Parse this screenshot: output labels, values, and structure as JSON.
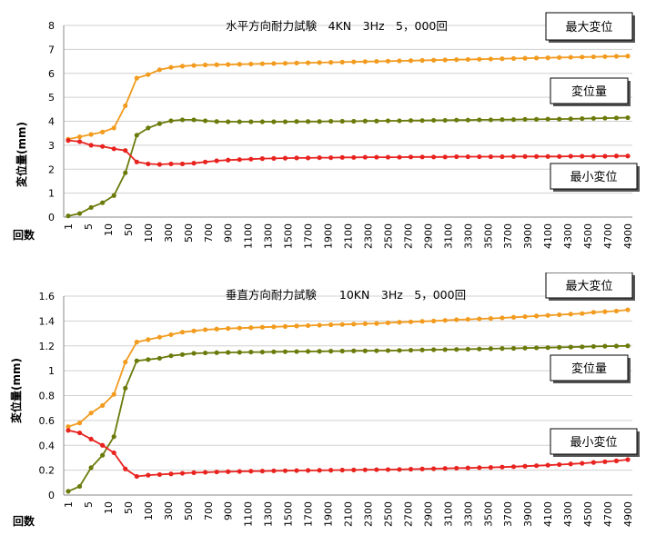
{
  "colors": {
    "max": "#f29b1e",
    "disp": "#6b7a0a",
    "min": "#e8231f",
    "grid": "#d0d0d0"
  },
  "x_labels": [
    "1",
    "5",
    "10",
    "50",
    "100",
    "300",
    "500",
    "700",
    "900",
    "1100",
    "1300",
    "1500",
    "1700",
    "1900",
    "2100",
    "2300",
    "2500",
    "2700",
    "2900",
    "3100",
    "3300",
    "3500",
    "3700",
    "3900",
    "4100",
    "4300",
    "4500",
    "4700",
    "4900"
  ],
  "chart_data": [
    {
      "type": "line",
      "title": "水平方向耐力試験　4KN　3Hz　5，000回",
      "xlabel": "回数",
      "ylabel": "変位量(mm)",
      "ylim": [
        0,
        8
      ],
      "yticks": [
        "0",
        "1",
        "2",
        "3",
        "4",
        "5",
        "6",
        "7",
        "8"
      ],
      "grid": true,
      "legend": [
        {
          "key": "max",
          "label": "最大変位"
        },
        {
          "key": "disp",
          "label": "変位量"
        },
        {
          "key": "min",
          "label": "最小変位"
        }
      ],
      "series": [
        {
          "key": "max",
          "values": [
            3.25,
            3.35,
            3.45,
            3.55,
            3.72,
            4.65,
            5.8,
            5.95,
            6.15,
            6.25,
            6.3,
            6.33,
            6.35,
            6.36,
            6.37,
            6.38,
            6.39,
            6.4,
            6.41,
            6.42,
            6.43,
            6.44,
            6.45,
            6.46,
            6.47,
            6.48,
            6.49,
            6.5,
            6.51,
            6.52,
            6.53,
            6.54,
            6.55,
            6.56,
            6.57,
            6.58,
            6.59,
            6.6,
            6.61,
            6.62,
            6.63,
            6.64,
            6.65,
            6.66,
            6.67,
            6.68,
            6.69,
            6.7,
            6.71,
            6.72
          ]
        },
        {
          "key": "disp",
          "values": [
            0.05,
            0.15,
            0.4,
            0.6,
            0.9,
            1.85,
            3.42,
            3.72,
            3.9,
            4.02,
            4.06,
            4.06,
            4.02,
            3.99,
            3.98,
            3.98,
            3.98,
            3.98,
            3.98,
            3.98,
            3.99,
            3.99,
            3.99,
            4.0,
            4.0,
            4.0,
            4.01,
            4.01,
            4.02,
            4.02,
            4.03,
            4.03,
            4.04,
            4.04,
            4.05,
            4.05,
            4.06,
            4.06,
            4.07,
            4.07,
            4.08,
            4.08,
            4.09,
            4.09,
            4.1,
            4.11,
            4.12,
            4.13,
            4.14,
            4.15
          ]
        },
        {
          "key": "min",
          "values": [
            3.2,
            3.15,
            3.0,
            2.95,
            2.85,
            2.78,
            2.3,
            2.22,
            2.2,
            2.22,
            2.22,
            2.25,
            2.3,
            2.35,
            2.38,
            2.4,
            2.42,
            2.44,
            2.45,
            2.46,
            2.47,
            2.47,
            2.48,
            2.48,
            2.49,
            2.49,
            2.5,
            2.5,
            2.5,
            2.5,
            2.51,
            2.51,
            2.51,
            2.51,
            2.52,
            2.52,
            2.52,
            2.52,
            2.52,
            2.53,
            2.53,
            2.53,
            2.53,
            2.53,
            2.54,
            2.54,
            2.54,
            2.54,
            2.55,
            2.55
          ]
        }
      ]
    },
    {
      "type": "line",
      "title": "垂直方向耐力試験　　10KN　3Hz　5，000回",
      "xlabel": "回数",
      "ylabel": "変位量(mm)",
      "ylim": [
        0,
        1.6
      ],
      "yticks": [
        "0",
        "0.2",
        "0.4",
        "0.6",
        "0.8",
        "1",
        "1.2",
        "1.4",
        "1.6"
      ],
      "grid": true,
      "legend": [
        {
          "key": "max",
          "label": "最大変位"
        },
        {
          "key": "disp",
          "label": "変位量"
        },
        {
          "key": "min",
          "label": "最小変位"
        }
      ],
      "series": [
        {
          "key": "max",
          "values": [
            0.55,
            0.58,
            0.66,
            0.72,
            0.81,
            1.07,
            1.23,
            1.25,
            1.27,
            1.29,
            1.31,
            1.32,
            1.33,
            1.335,
            1.34,
            1.343,
            1.346,
            1.35,
            1.353,
            1.356,
            1.36,
            1.363,
            1.366,
            1.37,
            1.372,
            1.375,
            1.378,
            1.38,
            1.385,
            1.39,
            1.393,
            1.397,
            1.4,
            1.405,
            1.41,
            1.413,
            1.417,
            1.42,
            1.425,
            1.43,
            1.435,
            1.44,
            1.445,
            1.45,
            1.455,
            1.46,
            1.47,
            1.475,
            1.48,
            1.49
          ]
        },
        {
          "key": "disp",
          "values": [
            0.03,
            0.07,
            0.22,
            0.32,
            0.47,
            0.86,
            1.08,
            1.09,
            1.1,
            1.12,
            1.13,
            1.14,
            1.143,
            1.145,
            1.147,
            1.148,
            1.15,
            1.15,
            1.152,
            1.153,
            1.154,
            1.155,
            1.156,
            1.157,
            1.158,
            1.16,
            1.16,
            1.161,
            1.162,
            1.163,
            1.165,
            1.167,
            1.169,
            1.17,
            1.171,
            1.173,
            1.175,
            1.177,
            1.179,
            1.18,
            1.182,
            1.184,
            1.186,
            1.188,
            1.19,
            1.192,
            1.195,
            1.197,
            1.198,
            1.2
          ]
        },
        {
          "key": "min",
          "values": [
            0.52,
            0.5,
            0.45,
            0.4,
            0.34,
            0.21,
            0.15,
            0.16,
            0.165,
            0.17,
            0.175,
            0.18,
            0.183,
            0.186,
            0.188,
            0.19,
            0.192,
            0.193,
            0.195,
            0.196,
            0.197,
            0.198,
            0.199,
            0.2,
            0.201,
            0.202,
            0.203,
            0.204,
            0.205,
            0.206,
            0.208,
            0.21,
            0.212,
            0.214,
            0.216,
            0.218,
            0.22,
            0.222,
            0.225,
            0.228,
            0.232,
            0.236,
            0.24,
            0.245,
            0.25,
            0.255,
            0.262,
            0.268,
            0.275,
            0.285
          ]
        }
      ]
    }
  ]
}
